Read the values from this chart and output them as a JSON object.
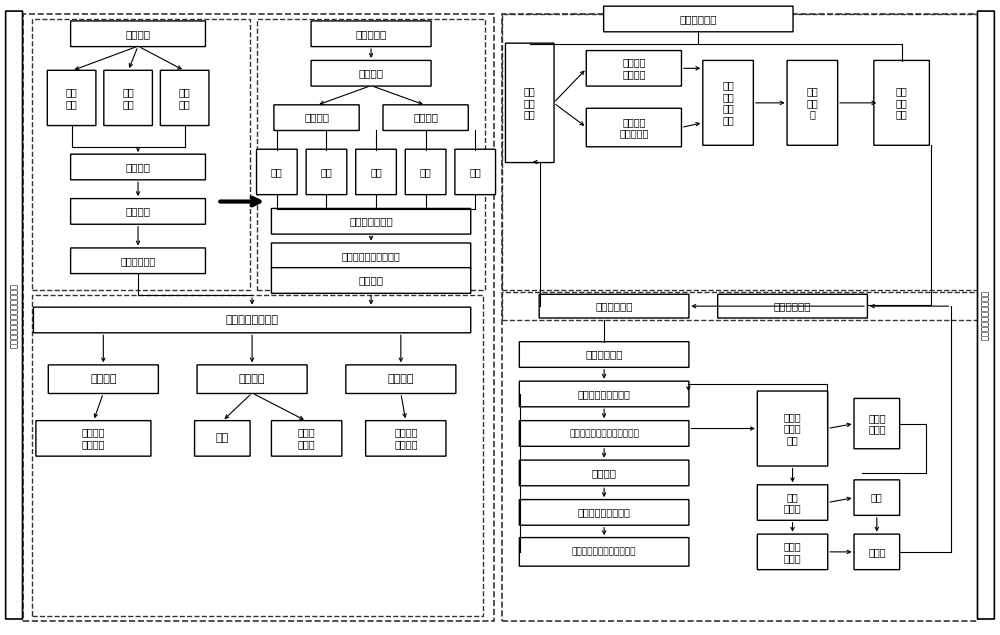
{
  "bg_color": "#ffffff",
  "fig_width": 10.0,
  "fig_height": 6.35,
  "nodes": {
    "zahe": "载荷情况",
    "wendu": "温度\n载荷",
    "lixin": "离心\n载荷",
    "qidong": "气动\n载荷",
    "yingli": "应力分布",
    "bianhua": "变化幅度",
    "shouli": "受力条件确定",
    "daiqueye": "带缺陷叶轮",
    "jianhua": "简化裂纹",
    "jihe": "几何参数",
    "fenbu": "分布位置",
    "changdu": "长度",
    "kuandu": "宽度",
    "shendu": "深度",
    "heng": "横向",
    "zong": "纵向",
    "liewen": "裂纹参数化试验",
    "yinglibian": "叶轮应力分布变化情况",
    "mingan": "敏感区域",
    "queding": "确定具体优化对象",
    "youhua_var": "优化变量",
    "youhua_tgt": "优化目标",
    "yueshu": "约束条件",
    "yepian_t": "叶片不同\n截面厚度",
    "zhiliang": "质量",
    "max_yl": "最大等\n效应力",
    "lixiang": "理想叶轮\n应力数値",
    "ceshi": "初始测试样本",
    "xunlian": "初始\n训练\n样本",
    "jmian": "叶轮叶片\n截面数据",
    "max_yl2": "最大等效\n应力及质量",
    "shenjing": "神经\n网络\n映射\n模型",
    "yuce_ql": "预测\n正确\n率",
    "moxing": "模型\n性能\n评价",
    "jiada": "加大训练样本",
    "chaochuy": "超出预定范围",
    "chansheng": "产生初始种群",
    "jisuan1": "计算拥挤距离和序値",
    "yichuan": "叶片序列遗传操作产生于种群",
    "hebing": "种群合并",
    "jisuan2": "计算拥挤距离和序値",
    "xiujian": "种群修剪淘汰失败叶片数据",
    "panduan": "判断得\n到优化\n解集",
    "yuce_mb": "预测\n目标値",
    "moni": "模拟计\n算目标",
    "wucha": "误差",
    "zuiyou": "最优解",
    "feilie": "得到非\n列解集",
    "left_label": "考虑缺陷的大型化影膨机叶轮",
    "right_label": "实现叶轮叶片具体优化"
  }
}
